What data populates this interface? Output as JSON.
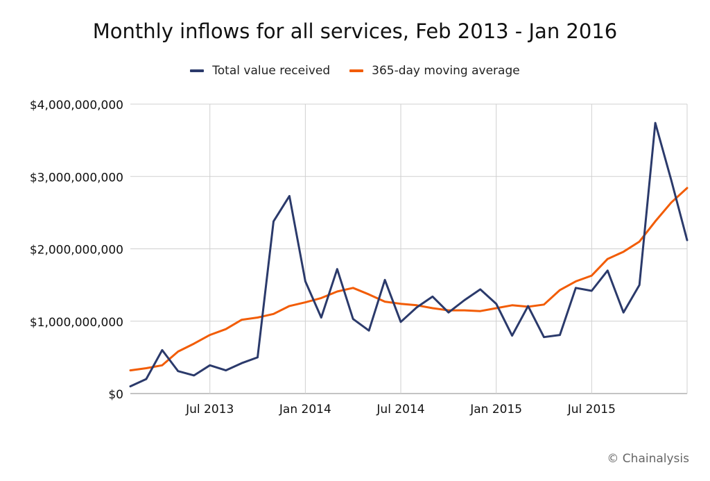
{
  "chart_data": {
    "type": "line",
    "title": "Monthly inflows for all services, Feb 2013 - Jan 2016",
    "x": [
      "2013-02",
      "2013-03",
      "2013-04",
      "2013-05",
      "2013-06",
      "2013-07",
      "2013-08",
      "2013-09",
      "2013-10",
      "2013-11",
      "2013-12",
      "2014-01",
      "2014-02",
      "2014-03",
      "2014-04",
      "2014-05",
      "2014-06",
      "2014-07",
      "2014-08",
      "2014-09",
      "2014-10",
      "2014-11",
      "2014-12",
      "2015-01",
      "2015-02",
      "2015-03",
      "2015-04",
      "2015-05",
      "2015-06",
      "2015-07",
      "2015-08",
      "2015-09",
      "2015-10",
      "2015-11",
      "2015-12",
      "2016-01"
    ],
    "x_ticks": [
      "Jul 2013",
      "Jan 2014",
      "Jul 2014",
      "Jan 2015",
      "Jul 2015"
    ],
    "x_tick_values": [
      "2013-07",
      "2014-01",
      "2014-07",
      "2015-01",
      "2015-07"
    ],
    "series": [
      {
        "name": "Total value received",
        "color": "#2b3a6b",
        "values": [
          100000000,
          200000000,
          600000000,
          310000000,
          250000000,
          390000000,
          320000000,
          420000000,
          500000000,
          2380000000,
          2730000000,
          1550000000,
          1050000000,
          1720000000,
          1030000000,
          870000000,
          1570000000,
          990000000,
          1190000000,
          1340000000,
          1120000000,
          1290000000,
          1440000000,
          1240000000,
          800000000,
          1210000000,
          780000000,
          810000000,
          1460000000,
          1420000000,
          1700000000,
          1120000000,
          1500000000,
          3740000000,
          2950000000,
          2120000000
        ]
      },
      {
        "name": "365-day moving average",
        "color": "#f25c05",
        "values": [
          320000000,
          350000000,
          390000000,
          580000000,
          690000000,
          810000000,
          890000000,
          1020000000,
          1050000000,
          1100000000,
          1210000000,
          1260000000,
          1320000000,
          1410000000,
          1460000000,
          1370000000,
          1270000000,
          1240000000,
          1220000000,
          1180000000,
          1150000000,
          1150000000,
          1140000000,
          1180000000,
          1220000000,
          1200000000,
          1230000000,
          1430000000,
          1550000000,
          1630000000,
          1860000000,
          1960000000,
          2100000000,
          2380000000,
          2640000000,
          2840000000
        ]
      }
    ],
    "y_ticks": [
      "$0",
      "$1,000,000,000",
      "$2,000,000,000",
      "$3,000,000,000",
      "$4,000,000,000"
    ],
    "y_tick_values": [
      0,
      1000000000,
      2000000000,
      3000000000,
      4000000000
    ],
    "ylim": [
      0,
      4000000000
    ],
    "grid": true,
    "legend_position": "top-center"
  },
  "credit": "© Chainalysis"
}
